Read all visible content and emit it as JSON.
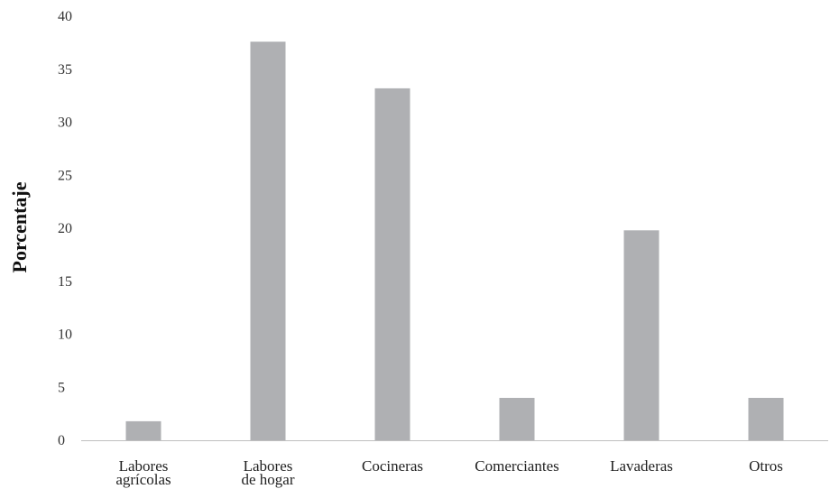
{
  "chart_data": {
    "type": "bar",
    "title": "",
    "xlabel": "",
    "ylabel": "Porcentaje",
    "ylim": [
      0,
      40
    ],
    "yticks": [
      0,
      5,
      10,
      15,
      20,
      25,
      30,
      35,
      40
    ],
    "categories": [
      "Labores agrícolas",
      "Labores de hogar",
      "Cocineras",
      "Comerciantes",
      "Lavaderas",
      "Otros"
    ],
    "category_lines": [
      [
        "Labores",
        "agrícolas"
      ],
      [
        "Labores",
        "de hogar"
      ],
      [
        "Cocineras"
      ],
      [
        "Comerciantes"
      ],
      [
        "Lavaderas"
      ],
      [
        "Otros"
      ]
    ],
    "values": [
      1.8,
      37.6,
      33.2,
      4.0,
      19.8,
      4.0
    ],
    "bar_color": "#afb0b3",
    "axis_color": "#bfbfbf",
    "grid": false,
    "legend": "none"
  }
}
